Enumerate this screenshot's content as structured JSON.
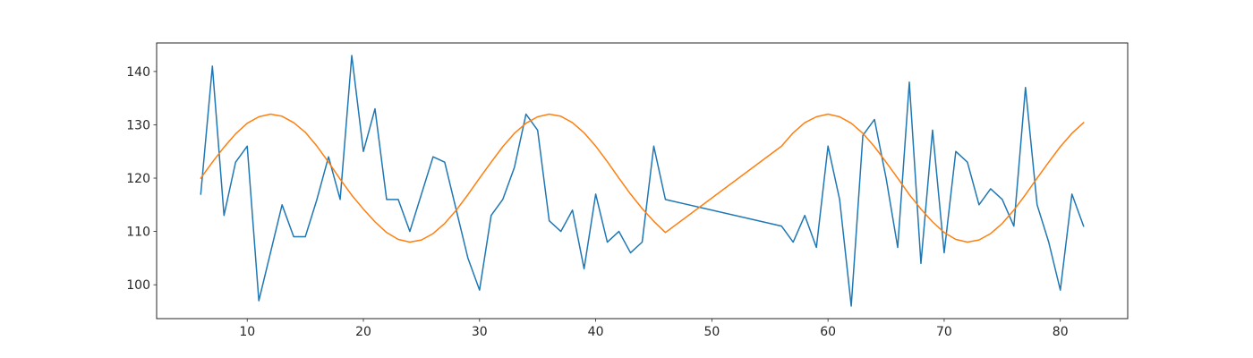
{
  "chart_data": {
    "type": "line",
    "title": "",
    "xlabel": "",
    "ylabel": "",
    "xlim": [
      2.2,
      85.8
    ],
    "ylim": [
      93.65,
      145.35
    ],
    "grid": false,
    "x_ticks": [
      10,
      20,
      30,
      40,
      50,
      60,
      70,
      80
    ],
    "y_ticks": [
      100,
      110,
      120,
      130,
      140
    ],
    "colors": {
      "series_1": "#1f77b4",
      "series_2": "#ff7f0e",
      "axes": "#262626"
    },
    "series": [
      {
        "x": [
          6,
          7,
          8,
          9,
          10,
          11,
          12,
          13,
          14,
          15,
          16,
          17,
          18,
          19,
          20,
          21,
          22,
          23,
          24,
          25,
          26,
          27,
          28,
          29,
          30,
          31,
          32,
          33,
          34,
          35,
          36,
          37,
          38,
          39,
          40,
          41,
          42,
          43,
          44,
          45,
          46,
          56,
          57,
          58,
          59,
          60,
          61,
          62,
          63,
          64,
          65,
          66,
          67,
          68,
          69,
          70,
          71,
          72,
          73,
          74,
          75,
          76,
          77,
          78,
          79,
          80,
          81,
          82
        ],
        "values": [
          117,
          141,
          113,
          123,
          126,
          97,
          106,
          115,
          109,
          109,
          116,
          124,
          116,
          143,
          125,
          133,
          116,
          116,
          110,
          117,
          124,
          123,
          114,
          105,
          99,
          113,
          116,
          122,
          132,
          129,
          112,
          110,
          114,
          103,
          117,
          108,
          110,
          106,
          108,
          126,
          116,
          111,
          108,
          113,
          107,
          126,
          116,
          96,
          128,
          131,
          120,
          107,
          138,
          104,
          129,
          106,
          125,
          123,
          115,
          118,
          116,
          111,
          137,
          115,
          108,
          99,
          117,
          111
        ]
      },
      {
        "x": [
          6,
          7,
          8,
          9,
          10,
          11,
          12,
          13,
          14,
          15,
          16,
          17,
          18,
          19,
          20,
          21,
          22,
          23,
          24,
          25,
          26,
          27,
          28,
          29,
          30,
          31,
          32,
          33,
          34,
          35,
          36,
          37,
          38,
          39,
          40,
          41,
          42,
          43,
          44,
          45,
          46,
          56,
          57,
          58,
          59,
          60,
          61,
          62,
          63,
          64,
          65,
          66,
          67,
          68,
          69,
          70,
          71,
          72,
          73,
          74,
          75,
          76,
          77,
          78,
          79,
          80,
          81,
          82
        ],
        "values": [
          120,
          123,
          125.8,
          128.3,
          130.3,
          131.5,
          132,
          131.6,
          130.4,
          128.6,
          126,
          123,
          119.8,
          116.8,
          114.2,
          111.8,
          109.8,
          108.5,
          108,
          108.4,
          109.6,
          111.5,
          114,
          116.9,
          120,
          123,
          125.9,
          128.4,
          130.3,
          131.5,
          132,
          131.6,
          130.4,
          128.5,
          126,
          123.1,
          120,
          117,
          114.3,
          111.9,
          109.8,
          126,
          128.5,
          130.4,
          131.5,
          132,
          131.5,
          130.3,
          128.4,
          125.9,
          123,
          120,
          116.9,
          114.2,
          111.8,
          109.8,
          108.5,
          108,
          108.4,
          109.6,
          111.5,
          114,
          116.9,
          120,
          123,
          125.9,
          128.4,
          130.4
        ]
      }
    ]
  }
}
